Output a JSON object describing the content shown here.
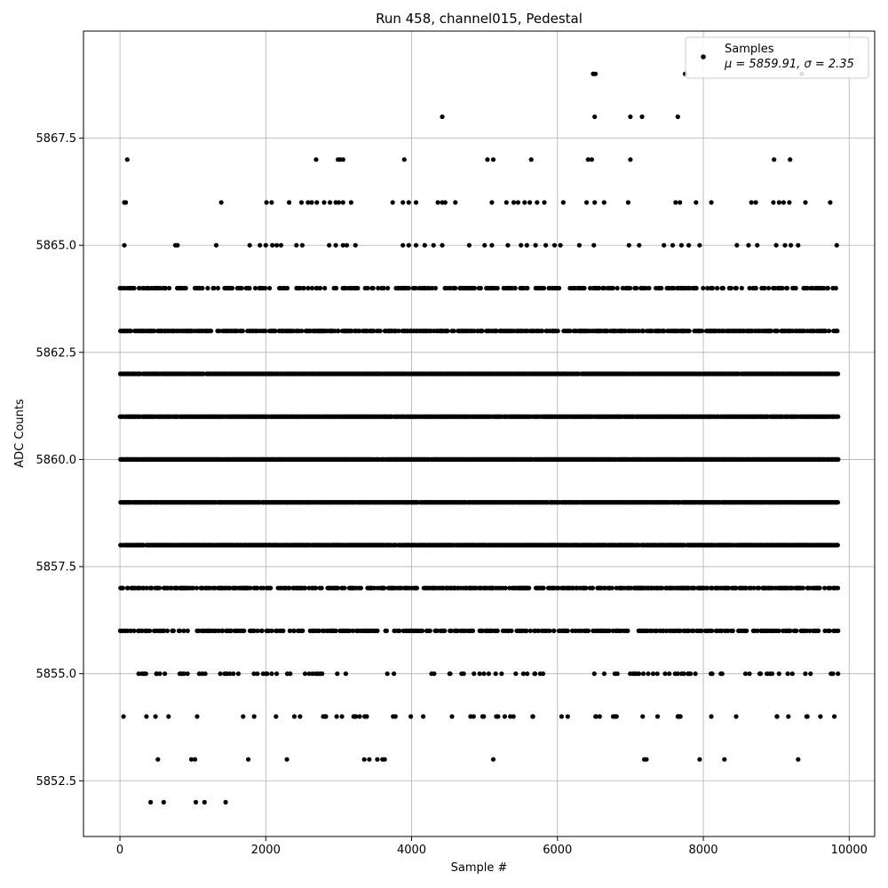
{
  "chart_data": {
    "type": "scatter",
    "title": "Run 458, channel015, Pedestal",
    "xlabel": "Sample #",
    "ylabel": "ADC Counts",
    "xlim": [
      -500,
      10350
    ],
    "ylim": [
      5851.2,
      5870.0
    ],
    "xticks": [
      0,
      2000,
      4000,
      6000,
      8000,
      10000
    ],
    "xtick_labels": [
      "0",
      "2000",
      "4000",
      "6000",
      "8000",
      "10000"
    ],
    "yticks": [
      5852.5,
      5855.0,
      5857.5,
      5860.0,
      5862.5,
      5865.0,
      5867.5
    ],
    "ytick_labels": [
      "5852.5",
      "5855.0",
      "5857.5",
      "5860.0",
      "5862.5",
      "5865.0",
      "5867.5"
    ],
    "grid": true,
    "legend": {
      "placement": "upper right",
      "entry": "Samples",
      "stats": "μ = 5859.91, σ = 2.35"
    },
    "marker_color": "#000000",
    "n_samples": 9850,
    "series": [
      {
        "name": "Samples",
        "points": [
          [
            420,
            5852
          ],
          [
            600,
            5852
          ],
          [
            1040,
            5852
          ],
          [
            1160,
            5852
          ],
          [
            1450,
            5852
          ],
          [
            520,
            5853
          ],
          [
            980,
            5853
          ],
          [
            1030,
            5853
          ],
          [
            1760,
            5853
          ],
          [
            2290,
            5853
          ],
          [
            3350,
            5853
          ],
          [
            3420,
            5853
          ],
          [
            3530,
            5853
          ],
          [
            3600,
            5853
          ],
          [
            3630,
            5853
          ],
          [
            5120,
            5853
          ],
          [
            7190,
            5853
          ],
          [
            7220,
            5853
          ],
          [
            7950,
            5853
          ],
          [
            8290,
            5853
          ],
          [
            9300,
            5853
          ],
          [
            9350,
            5869
          ],
          [
            6520,
            5869
          ],
          [
            6490,
            5869
          ],
          [
            7750,
            5869
          ],
          [
            4420,
            5868
          ],
          [
            6510,
            5868
          ],
          [
            7000,
            5868
          ],
          [
            7160,
            5868
          ],
          [
            7650,
            5868
          ],
          [
            100,
            5867
          ],
          [
            2690,
            5867
          ],
          [
            2990,
            5867
          ],
          [
            3020,
            5867
          ],
          [
            3060,
            5867
          ],
          [
            3900,
            5867
          ],
          [
            5040,
            5867
          ],
          [
            5120,
            5867
          ],
          [
            5640,
            5867
          ],
          [
            6420,
            5867
          ],
          [
            6470,
            5867
          ],
          [
            7000,
            5867
          ],
          [
            8970,
            5867
          ],
          [
            9190,
            5867
          ],
          [
            60,
            5866
          ],
          [
            80,
            5866
          ],
          [
            1390,
            5866
          ],
          [
            2010,
            5866
          ],
          [
            2080,
            5866
          ],
          [
            2320,
            5866
          ],
          [
            2490,
            5866
          ],
          [
            2580,
            5866
          ],
          [
            2630,
            5866
          ],
          [
            2700,
            5866
          ],
          [
            2800,
            5866
          ],
          [
            2880,
            5866
          ],
          [
            2960,
            5866
          ],
          [
            3000,
            5866
          ],
          [
            3060,
            5866
          ],
          [
            3170,
            5866
          ],
          [
            3740,
            5866
          ],
          [
            3880,
            5866
          ],
          [
            3960,
            5866
          ],
          [
            4060,
            5866
          ],
          [
            4360,
            5866
          ],
          [
            4420,
            5866
          ],
          [
            4460,
            5866
          ],
          [
            4600,
            5866
          ],
          [
            5100,
            5866
          ],
          [
            5300,
            5866
          ],
          [
            5400,
            5866
          ],
          [
            5460,
            5866
          ],
          [
            5550,
            5866
          ],
          [
            5620,
            5866
          ],
          [
            5720,
            5866
          ],
          [
            5820,
            5866
          ],
          [
            6080,
            5866
          ],
          [
            6400,
            5866
          ],
          [
            6510,
            5866
          ],
          [
            6640,
            5866
          ],
          [
            6970,
            5866
          ],
          [
            7620,
            5866
          ],
          [
            7680,
            5866
          ],
          [
            7900,
            5866
          ],
          [
            8110,
            5866
          ],
          [
            8660,
            5866
          ],
          [
            8720,
            5866
          ],
          [
            8960,
            5866
          ],
          [
            9040,
            5866
          ],
          [
            9100,
            5866
          ],
          [
            9180,
            5866
          ],
          [
            9400,
            5866
          ],
          [
            9740,
            5866
          ],
          [
            60,
            5865
          ],
          [
            760,
            5865
          ],
          [
            790,
            5865
          ],
          [
            1320,
            5865
          ],
          [
            1780,
            5865
          ],
          [
            1920,
            5865
          ],
          [
            2000,
            5865
          ],
          [
            2090,
            5865
          ],
          [
            2150,
            5865
          ],
          [
            2210,
            5865
          ],
          [
            2420,
            5865
          ],
          [
            2500,
            5865
          ],
          [
            2870,
            5865
          ],
          [
            2960,
            5865
          ],
          [
            3060,
            5865
          ],
          [
            3110,
            5865
          ],
          [
            3230,
            5865
          ],
          [
            3880,
            5865
          ],
          [
            3960,
            5865
          ],
          [
            4060,
            5865
          ],
          [
            4180,
            5865
          ],
          [
            4300,
            5865
          ],
          [
            4420,
            5865
          ],
          [
            4790,
            5865
          ],
          [
            5000,
            5865
          ],
          [
            5100,
            5865
          ],
          [
            5320,
            5865
          ],
          [
            5500,
            5865
          ],
          [
            5580,
            5865
          ],
          [
            5700,
            5865
          ],
          [
            5840,
            5865
          ],
          [
            5960,
            5865
          ],
          [
            6040,
            5865
          ],
          [
            6300,
            5865
          ],
          [
            6500,
            5865
          ],
          [
            6980,
            5865
          ],
          [
            7120,
            5865
          ],
          [
            7460,
            5865
          ],
          [
            7580,
            5865
          ],
          [
            7700,
            5865
          ],
          [
            7800,
            5865
          ],
          [
            7950,
            5865
          ],
          [
            8460,
            5865
          ],
          [
            8620,
            5865
          ],
          [
            8740,
            5865
          ],
          [
            9000,
            5865
          ],
          [
            9120,
            5865
          ],
          [
            9200,
            5865
          ],
          [
            9300,
            5865
          ],
          [
            9830,
            5865
          ]
        ]
      }
    ],
    "dense_bands": [
      {
        "y": 5864,
        "density": 0.35
      },
      {
        "y": 5863,
        "density": 0.6
      },
      {
        "y": 5862,
        "density": 0.9
      },
      {
        "y": 5861,
        "density": 0.95
      },
      {
        "y": 5860,
        "density": 0.97
      },
      {
        "y": 5859,
        "density": 0.97
      },
      {
        "y": 5858,
        "density": 0.9
      },
      {
        "y": 5857,
        "density": 0.55
      },
      {
        "y": 5856,
        "density": 0.4
      },
      {
        "y": 5855,
        "density": 0.12
      },
      {
        "y": 5854,
        "density": 0.06
      }
    ]
  }
}
